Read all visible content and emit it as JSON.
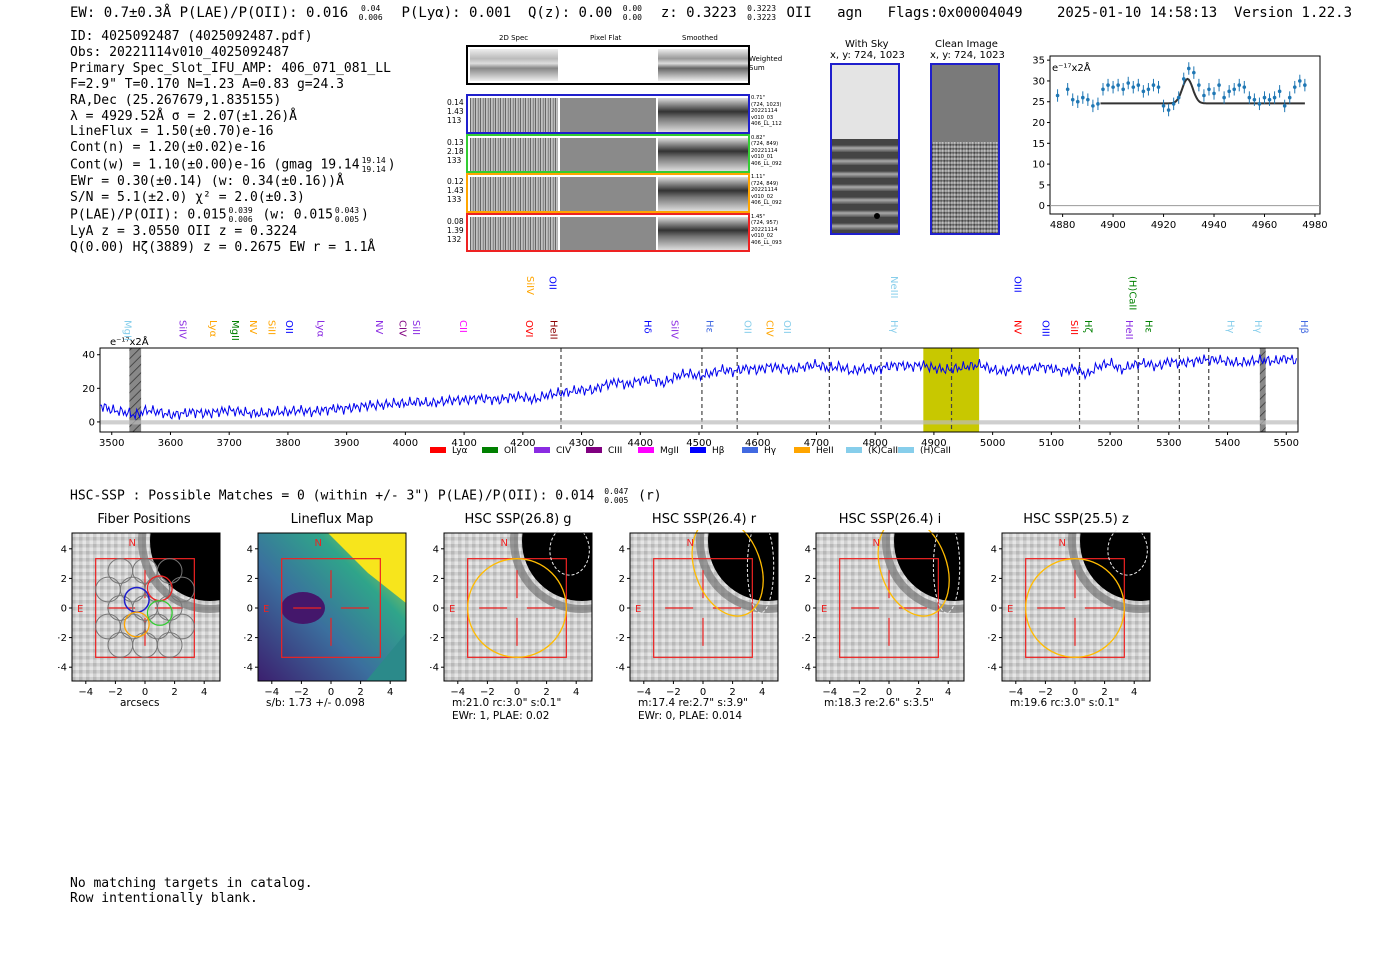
{
  "header": {
    "left_text": "EW: 0.7±0.3Å  P(LAE)/P(OII): 0.016",
    "left_frac_top": "0.04",
    "left_frac_bot": "0.006",
    "plya": "P(Lyα): 0.001",
    "qz": "Q(z): 0.00",
    "qz_frac_top": "0.00",
    "qz_frac_bot": "0.00",
    "z": "z: 0.3223",
    "z_frac_top": "0.3223",
    "z_frac_bot": "0.3223",
    "line": "OII",
    "agn": "agn",
    "flags": "Flags:0x00004049",
    "timestamp": "2025-01-10 14:58:13",
    "version": "Version 1.22.3"
  },
  "info": {
    "id": "ID: 4025092487 (4025092487.pdf)",
    "obs": "Obs: 20221114v010_4025092487",
    "primary": "Primary Spec_Slot_IFU_AMP: 406_071_081_LL",
    "fwhm": "F=2.9\"  T=0.170  N=1.23  A=0.83  g=24.3",
    "radec": "RA,Dec (25.267679,1.835155)",
    "lambda": "λ = 4929.52Å  σ = 2.07(±1.26)Å",
    "lineflux": "LineFlux = 1.50(±0.70)e-16",
    "contn": "Cont(n) = 1.20(±0.02)e-16",
    "contw": "Cont(w) = 1.10(±0.00)e-16 (gmag 19.14",
    "contw_frac_top": "19.14",
    "contw_frac_bot": "19.14",
    "contw_end": ")",
    "ewr": "EWr = 0.30(±0.14) (w: 0.34(±0.16))Å",
    "sn": "S/N = 5.1(±2.0)  χ² = 2.0(±0.3)",
    "plae": "P(LAE)/P(OII): 0.015",
    "plae_frac_top": "0.039",
    "plae_frac_bot": "0.006",
    "plae_w": "(w: 0.015",
    "plae_w_frac_top": "0.043",
    "plae_w_frac_bot": "0.005",
    "plae_end": ")",
    "lya": "LyA z = 3.0550  OII z = 0.3224",
    "q": "Q(0.00) Hζ(3889) z = 0.2675  EW r = 1.1Å"
  },
  "spec2d": {
    "col_labels": [
      "2D Spec",
      "Pixel Flat",
      "Smoothed"
    ],
    "weighted_sum": "Weighted Sum",
    "rows": [
      {
        "left": [
          "0.14",
          "1.43",
          "113"
        ],
        "right": [
          "0.71\"",
          "(724, 1023)",
          "20221114",
          "v010_03",
          "406_LL_112"
        ],
        "color": "#1f1fcc"
      },
      {
        "left": [
          "0.13",
          "2.18",
          "133"
        ],
        "right": [
          "0.82\"",
          "(724, 849)",
          "20221114",
          "v010_01",
          "406_LL_092"
        ],
        "color": "#33cc33"
      },
      {
        "left": [
          "0.12",
          "1.43",
          "133"
        ],
        "right": [
          "1.11\"",
          "(724, 849)",
          "20221114",
          "v010_02",
          "406_LL_092"
        ],
        "color": "#ffa500"
      },
      {
        "left": [
          "0.08",
          "1.39",
          "132"
        ],
        "right": [
          "1.45\"",
          "(724, 957)",
          "20221114",
          "v010_02",
          "406_LL_093"
        ],
        "color": "#ee2222"
      }
    ]
  },
  "cutouts": {
    "with_sky": "With Sky",
    "with_sky_xy": "x, y: 724, 1023",
    "clean": "Clean Image",
    "clean_xy": "x, y: 724, 1023"
  },
  "zoom_chart": {
    "unit_label": "e⁻¹⁷x2Å"
  },
  "main_spec": {
    "unit_label": "e⁻¹⁷x2Å",
    "legend": [
      {
        "label": "Lyα",
        "color": "#ff0000"
      },
      {
        "label": "OII",
        "color": "#008000"
      },
      {
        "label": "CIV",
        "color": "#8a2be2"
      },
      {
        "label": "CIII",
        "color": "#800080"
      },
      {
        "label": "MgII",
        "color": "#ff00ff"
      },
      {
        "label": "Hβ",
        "color": "#0000ff"
      },
      {
        "label": "Hγ",
        "color": "#4169e1"
      },
      {
        "label": "HeII",
        "color": "#ffa500"
      },
      {
        "label": "(K)CaII",
        "color": "#87ceeb"
      },
      {
        "label": "(H)CaII",
        "color": "#87ceeb"
      }
    ],
    "line_labels": [
      {
        "text": "MgII",
        "x": 3517,
        "color": "#87ceeb",
        "row": 1
      },
      {
        "text": "SiIV",
        "x": 3610,
        "color": "#8a2be2",
        "row": 1
      },
      {
        "text": "Lyα",
        "x": 3662,
        "color": "#ffa500",
        "row": 1
      },
      {
        "text": "MgII",
        "x": 3700,
        "color": "#008000",
        "row": 1
      },
      {
        "text": "NV",
        "x": 3730,
        "color": "#ffa500",
        "row": 1
      },
      {
        "text": "SiII",
        "x": 3762,
        "color": "#ffa500",
        "row": 1
      },
      {
        "text": "OII",
        "x": 3792,
        "color": "#0000ff",
        "row": 1
      },
      {
        "text": "Lyα",
        "x": 3845,
        "color": "#8a2be2",
        "row": 1
      },
      {
        "text": "NV",
        "x": 3945,
        "color": "#8a2be2",
        "row": 1
      },
      {
        "text": "CIV",
        "x": 3985,
        "color": "#800080",
        "row": 1
      },
      {
        "text": "SiII",
        "x": 4008,
        "color": "#8a2be2",
        "row": 1
      },
      {
        "text": "CII",
        "x": 4088,
        "color": "#ff00ff",
        "row": 1
      },
      {
        "text": "OVI",
        "x": 4200,
        "color": "#ff0000",
        "row": 1
      },
      {
        "text": "HeII",
        "x": 4242,
        "color": "#8b0000",
        "row": 1
      },
      {
        "text": "SiIV",
        "x": 4202,
        "color": "#ffa500",
        "row": 0
      },
      {
        "text": "OII",
        "x": 4240,
        "color": "#0000ff",
        "row": 0
      },
      {
        "text": "Hδ",
        "x": 4402,
        "color": "#0000ff",
        "row": 1
      },
      {
        "text": "SiIV",
        "x": 4448,
        "color": "#8a2be2",
        "row": 1
      },
      {
        "text": "Hε",
        "x": 4508,
        "color": "#4169e1",
        "row": 1
      },
      {
        "text": "OII",
        "x": 4572,
        "color": "#87ceeb",
        "row": 1
      },
      {
        "text": "CIV",
        "x": 4610,
        "color": "#ffa500",
        "row": 1
      },
      {
        "text": "OII",
        "x": 4640,
        "color": "#87ceeb",
        "row": 1
      },
      {
        "text": "NeIII",
        "x": 4822,
        "color": "#87ceeb",
        "row": 0
      },
      {
        "text": "Hγ",
        "x": 4822,
        "color": "#87ceeb",
        "row": 1
      },
      {
        "text": "OIII",
        "x": 5032,
        "color": "#0000ff",
        "row": 0
      },
      {
        "text": "NV",
        "x": 5032,
        "color": "#ff0000",
        "row": 1
      },
      {
        "text": "OIII",
        "x": 5080,
        "color": "#0000ff",
        "row": 1
      },
      {
        "text": "SiII",
        "x": 5128,
        "color": "#ff0000",
        "row": 1
      },
      {
        "text": "Hζ",
        "x": 5152,
        "color": "#008000",
        "row": 1
      },
      {
        "text": "(H)CaII",
        "x": 5228,
        "color": "#008000",
        "row": 0
      },
      {
        "text": "HeII",
        "x": 5222,
        "color": "#8a2be2",
        "row": 1
      },
      {
        "text": "Hε",
        "x": 5255,
        "color": "#008000",
        "row": 1
      },
      {
        "text": "Hγ",
        "x": 5395,
        "color": "#87ceeb",
        "row": 1
      },
      {
        "text": "Hγ",
        "x": 5442,
        "color": "#87ceeb",
        "row": 1
      },
      {
        "text": "Hβ",
        "x": 5520,
        "color": "#4169e1",
        "row": 1
      }
    ]
  },
  "hsc": {
    "title": "HSC-SSP : Possible Matches = 0 (within +/- 3\")  P(LAE)/P(OII): 0.014",
    "title_frac_top": "0.047",
    "title_frac_bot": "0.005",
    "title_end": "(r)",
    "stamps": [
      {
        "title": "Fiber Positions",
        "caption": [
          "arcsecs"
        ],
        "kind": "fiber"
      },
      {
        "title": "Lineflux Map",
        "caption": [
          "s/b: 1.73 +/- 0.098"
        ],
        "kind": "flux"
      },
      {
        "title": "HSC SSP(26.8) g",
        "caption": [
          "m:21.0 rc:3.0\"  s:0.1\"",
          "EWr: 1, PLAE: 0.02"
        ],
        "kind": "g"
      },
      {
        "title": "HSC SSP(26.4) r",
        "caption": [
          "m:17.4  re:2.7\"  s:3.9\"",
          "EWr: 0, PLAE: 0.014"
        ],
        "kind": "r"
      },
      {
        "title": "HSC SSP(26.4) i",
        "caption": [
          "m:18.3  re:2.6\"  s:3.5\""
        ],
        "kind": "i"
      },
      {
        "title": "HSC SSP(25.5) z",
        "caption": [
          "m:19.6 rc:3.0\"  s:0.1\""
        ],
        "kind": "z"
      }
    ],
    "axis_ticks": [
      "−4",
      "−2",
      "0",
      "2",
      "4"
    ],
    "north": "N",
    "east": "E"
  },
  "footer": {
    "line1": "No matching targets in catalog.",
    "line2": "Row intentionally blank."
  },
  "chart_data": [
    {
      "type": "scatter",
      "title": "",
      "xlabel": "",
      "ylabel": "e⁻¹⁷x2Å",
      "xlim": [
        4875,
        4982
      ],
      "ylim": [
        -2,
        36
      ],
      "x_ticks": [
        4880,
        4900,
        4920,
        4940,
        4960,
        4980
      ],
      "y_ticks": [
        0,
        5,
        10,
        15,
        20,
        25,
        30,
        35
      ],
      "points_x": [
        4878,
        4882,
        4884,
        4886,
        4888,
        4890,
        4892,
        4894,
        4896,
        4898,
        4900,
        4902,
        4904,
        4906,
        4908,
        4910,
        4912,
        4914,
        4916,
        4918,
        4920,
        4922,
        4924,
        4926,
        4928,
        4930,
        4932,
        4934,
        4936,
        4938,
        4940,
        4942,
        4944,
        4946,
        4948,
        4950,
        4952,
        4954,
        4956,
        4958,
        4960,
        4962,
        4964,
        4966,
        4968,
        4970,
        4972,
        4974,
        4976
      ],
      "points_y": [
        26.5,
        28,
        25.5,
        25,
        26,
        25.5,
        24,
        24.5,
        28,
        29,
        28.5,
        29,
        28,
        29.5,
        28.5,
        29,
        27.5,
        28,
        29,
        28.5,
        24,
        23,
        24.5,
        26,
        30.5,
        33,
        32,
        29,
        26.5,
        28,
        27,
        29,
        26,
        27.5,
        28,
        29,
        28.5,
        26,
        25.5,
        24.5,
        26,
        25.5,
        26,
        27.5,
        24,
        26,
        28.5,
        30,
        29
      ],
      "model_y_baseline": 24.6,
      "model_peak_x": 4929.5,
      "model_peak_y": 30.5,
      "model_sigma": 2.07
    },
    {
      "type": "line",
      "title": "",
      "xlabel": "",
      "ylabel": "e⁻¹⁷x2Å",
      "xlim": [
        3480,
        5520
      ],
      "ylim": [
        -6,
        44
      ],
      "x_ticks": [
        3500,
        3600,
        3700,
        3800,
        3900,
        4000,
        4100,
        4200,
        4300,
        4400,
        4500,
        4600,
        4700,
        4800,
        4900,
        5000,
        5100,
        5200,
        5300,
        5400,
        5500
      ],
      "y_ticks": [
        0,
        20,
        40
      ],
      "series_x": [
        3480,
        3500,
        3520,
        3540,
        3560,
        3580,
        3600,
        3620,
        3640,
        3660,
        3680,
        3700,
        3720,
        3740,
        3760,
        3780,
        3800,
        3820,
        3840,
        3860,
        3880,
        3900,
        3920,
        3940,
        3960,
        3980,
        4000,
        4020,
        4040,
        4060,
        4080,
        4100,
        4120,
        4140,
        4160,
        4180,
        4200,
        4220,
        4240,
        4260,
        4280,
        4300,
        4320,
        4340,
        4360,
        4380,
        4400,
        4420,
        4440,
        4460,
        4480,
        4500,
        4520,
        4540,
        4560,
        4580,
        4600,
        4620,
        4640,
        4660,
        4680,
        4700,
        4720,
        4740,
        4760,
        4780,
        4800,
        4820,
        4840,
        4860,
        4880,
        4900,
        4920,
        4940,
        4960,
        4980,
        5000,
        5020,
        5040,
        5060,
        5080,
        5100,
        5120,
        5140,
        5160,
        5180,
        5200,
        5220,
        5240,
        5260,
        5280,
        5300,
        5320,
        5340,
        5360,
        5380,
        5400,
        5420,
        5440,
        5460,
        5480,
        5500,
        5520
      ],
      "series_y": [
        10,
        7,
        6,
        4,
        7,
        6,
        4,
        5,
        6,
        5,
        6,
        7,
        6,
        5,
        5,
        6,
        6,
        7,
        6,
        7,
        8,
        8,
        9,
        10,
        10,
        11,
        11,
        12,
        11,
        12,
        13,
        13,
        14,
        14,
        13,
        15,
        15,
        13,
        16,
        17,
        18,
        19,
        19,
        22,
        24,
        22,
        25,
        25,
        23,
        27,
        29,
        27,
        29,
        31,
        30,
        32,
        31,
        33,
        32,
        31,
        33,
        34,
        32,
        33,
        30,
        32,
        31,
        33,
        34,
        33,
        34,
        32,
        31,
        32,
        33,
        34,
        31,
        30,
        32,
        31,
        33,
        32,
        30,
        32,
        28,
        33,
        35,
        31,
        34,
        35,
        33,
        36,
        35,
        36,
        37,
        37,
        36,
        35,
        36,
        37,
        36,
        38,
        36
      ],
      "series_name": "",
      "bands": [
        {
          "type": "hatched",
          "x": [
            3530,
            3550
          ]
        },
        {
          "type": "highlight",
          "x": [
            4882,
            4977
          ],
          "color": "#c8c800"
        },
        {
          "type": "hatched",
          "x": [
            5455,
            5465
          ]
        }
      ],
      "dashed_lines": [
        4265,
        4505,
        4565,
        4722,
        4810,
        4930,
        5148,
        5248,
        5318,
        5368
      ]
    }
  ]
}
